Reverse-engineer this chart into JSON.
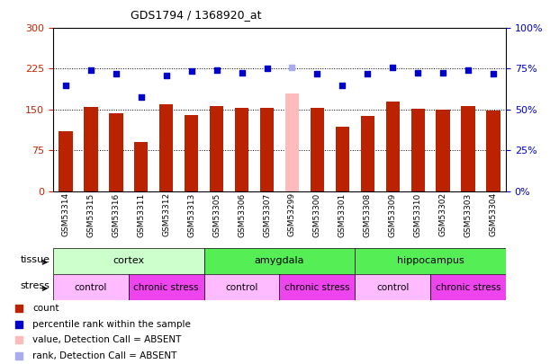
{
  "title": "GDS1794 / 1368920_at",
  "samples": [
    "GSM53314",
    "GSM53315",
    "GSM53316",
    "GSM53311",
    "GSM53312",
    "GSM53313",
    "GSM53305",
    "GSM53306",
    "GSM53307",
    "GSM53299",
    "GSM53300",
    "GSM53301",
    "GSM53308",
    "GSM53309",
    "GSM53310",
    "GSM53302",
    "GSM53303",
    "GSM53304"
  ],
  "bar_values": [
    110,
    155,
    143,
    90,
    160,
    140,
    157,
    153,
    153,
    180,
    153,
    118,
    138,
    165,
    152,
    150,
    156,
    148
  ],
  "bar_colors": [
    "#bb2200",
    "#bb2200",
    "#bb2200",
    "#bb2200",
    "#bb2200",
    "#bb2200",
    "#bb2200",
    "#bb2200",
    "#bb2200",
    "#ffbbbb",
    "#bb2200",
    "#bb2200",
    "#bb2200",
    "#bb2200",
    "#bb2200",
    "#bb2200",
    "#bb2200",
    "#bb2200"
  ],
  "dot_values_left_scale": [
    195,
    222,
    215,
    173,
    213,
    220,
    222,
    218,
    225,
    228,
    215,
    195,
    215,
    227,
    218,
    218,
    222,
    216
  ],
  "dot_colors": [
    "#0000cc",
    "#0000cc",
    "#0000cc",
    "#0000cc",
    "#0000cc",
    "#0000cc",
    "#0000cc",
    "#0000cc",
    "#0000cc",
    "#aaaaee",
    "#0000cc",
    "#0000cc",
    "#0000cc",
    "#0000cc",
    "#0000cc",
    "#0000cc",
    "#0000cc",
    "#0000cc"
  ],
  "ylim_left": [
    0,
    300
  ],
  "ylim_right": [
    0,
    100
  ],
  "yticks_left": [
    0,
    75,
    150,
    225,
    300
  ],
  "yticks_right": [
    0,
    25,
    50,
    75,
    100
  ],
  "hlines": [
    75,
    150,
    225
  ],
  "tissue_groups": [
    {
      "label": "cortex",
      "start": 0,
      "end": 6,
      "color": "#ccffcc"
    },
    {
      "label": "amygdala",
      "start": 6,
      "end": 12,
      "color": "#55ee55"
    },
    {
      "label": "hippocampus",
      "start": 12,
      "end": 18,
      "color": "#55ee55"
    }
  ],
  "stress_groups": [
    {
      "label": "control",
      "start": 0,
      "end": 3,
      "color": "#ffbbff"
    },
    {
      "label": "chronic stress",
      "start": 3,
      "end": 6,
      "color": "#ee44ee"
    },
    {
      "label": "control",
      "start": 6,
      "end": 9,
      "color": "#ffbbff"
    },
    {
      "label": "chronic stress",
      "start": 9,
      "end": 12,
      "color": "#ee44ee"
    },
    {
      "label": "control",
      "start": 12,
      "end": 15,
      "color": "#ffbbff"
    },
    {
      "label": "chronic stress",
      "start": 15,
      "end": 18,
      "color": "#ee44ee"
    }
  ],
  "legend_items": [
    {
      "label": "count",
      "color": "#bb2200"
    },
    {
      "label": "percentile rank within the sample",
      "color": "#0000cc"
    },
    {
      "label": "value, Detection Call = ABSENT",
      "color": "#ffbbbb"
    },
    {
      "label": "rank, Detection Call = ABSENT",
      "color": "#aaaaee"
    }
  ],
  "left_tick_color": "#cc2200",
  "right_tick_color": "#0000cc",
  "bg_color": "#ffffff",
  "xtick_bg_color": "#dddddd",
  "bar_width": 0.55
}
